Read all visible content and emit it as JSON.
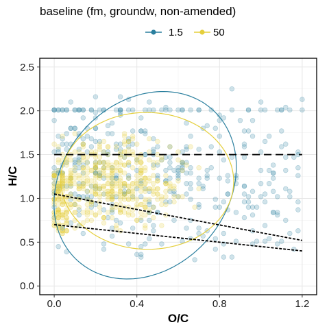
{
  "chart_data": {
    "type": "scatter",
    "title": "baseline (fm, groundw, non-amended)",
    "xlabel": "O/C",
    "ylabel": "H/C",
    "xlim": [
      -0.07,
      1.27
    ],
    "ylim": [
      -0.1,
      2.6
    ],
    "x_ticks": [
      {
        "value": 0.0,
        "label": "0.0"
      },
      {
        "value": 0.4,
        "label": "0.4"
      },
      {
        "value": 0.8,
        "label": "0.8"
      },
      {
        "value": 1.2,
        "label": "1.2"
      }
    ],
    "y_ticks": [
      {
        "value": 0.0,
        "label": "0.0"
      },
      {
        "value": 0.5,
        "label": "0.5"
      },
      {
        "value": 1.0,
        "label": "1.0"
      },
      {
        "value": 1.5,
        "label": "1.5"
      },
      {
        "value": 2.0,
        "label": "2.0"
      },
      {
        "value": 2.5,
        "label": "2.5"
      }
    ],
    "grid": true,
    "legend_position": "top",
    "series": [
      {
        "name": "1.5",
        "color": "#2a7f9e"
      },
      {
        "name": "50",
        "color": "#e5cf3c"
      }
    ],
    "ellipses": [
      {
        "series": "1.5",
        "cx": 0.44,
        "cy": 1.15,
        "rx": 0.43,
        "ry": 1.12,
        "angle_deg": -22
      },
      {
        "series": "50",
        "cx": 0.45,
        "cy": 1.2,
        "rx": 0.43,
        "ry": 0.8,
        "angle_deg": -25
      }
    ],
    "reference_lines": [
      {
        "style": "long-dash",
        "x": [
          0.0,
          1.2
        ],
        "y": [
          1.5,
          1.5
        ]
      },
      {
        "style": "short-dash",
        "x": [
          0.0,
          1.2
        ],
        "y": [
          1.05,
          0.52
        ]
      },
      {
        "style": "short-dash",
        "x": [
          0.0,
          1.2
        ],
        "y": [
          0.7,
          0.4
        ]
      }
    ],
    "point_clusters": [
      {
        "series": "1.5",
        "x_range": [
          0.0,
          1.2
        ],
        "y_range": [
          0.2,
          2.3
        ],
        "count": 420
      },
      {
        "series": "50",
        "x_range": [
          0.0,
          0.9
        ],
        "y_range": [
          0.3,
          2.0
        ],
        "count": 520
      }
    ]
  }
}
